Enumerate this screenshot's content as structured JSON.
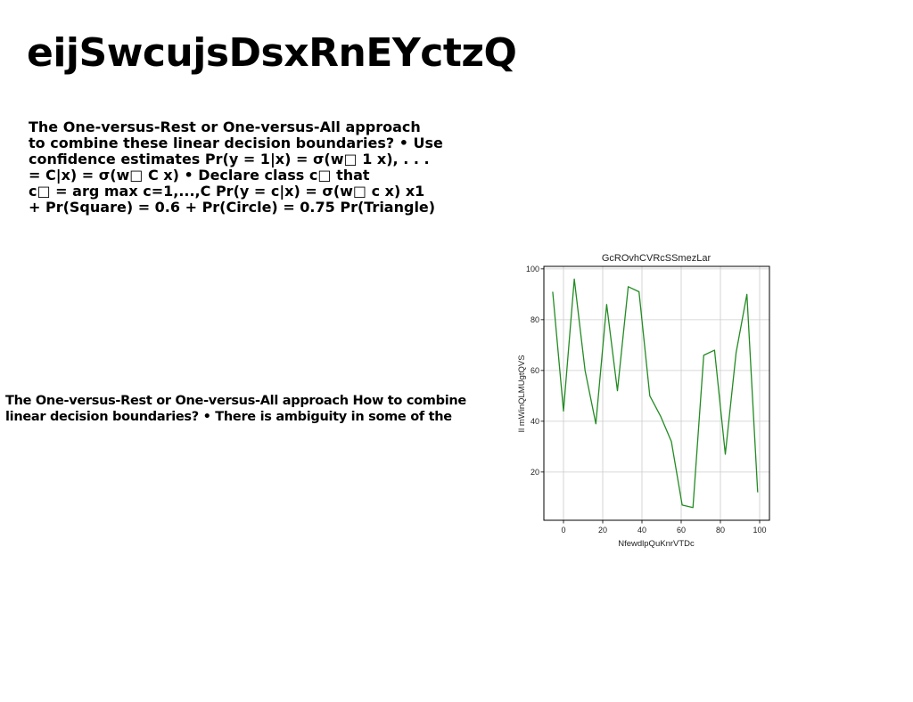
{
  "document": {
    "title": "eijSwcujsDsxRnEYctzQ",
    "paragraph_1_lines": [
      "The One-versus-Rest or One-versus-All approach",
      "to combine these linear decision boundaries? • Use",
      "confidence estimates Pr(y = 1|x) = σ(w□ 1 x), . . .",
      "= C|x) = σ(w□ C x) • Declare class c□ that",
      "c□ = arg max c=1,...,C Pr(y = c|x) = σ(w□ c x) x1",
      "+ Pr(Square) = 0.6 + Pr(Circle) = 0.75 Pr(Triangle)"
    ],
    "paragraph_2_lines": [
      "The One-versus-Rest or One-versus-All approach How to combine",
      "linear decision boundaries? • There is ambiguity in some of the"
    ]
  },
  "chart_data": {
    "type": "line",
    "title": "GcROvhCVRcSSmezLar",
    "xlabel": "NfewdlpQuKnrVTDc",
    "ylabel": "Il mWinQLMUgtQVS",
    "xlim": [
      -10,
      105
    ],
    "ylim": [
      1,
      101
    ],
    "x_ticks": [
      0,
      20,
      40,
      60,
      80,
      100
    ],
    "y_ticks": [
      20,
      40,
      60,
      80,
      100
    ],
    "grid": true,
    "series": [
      {
        "color": "#228B22",
        "x": [
          -5.5,
          0,
          5.5,
          11,
          16.5,
          22,
          27.5,
          33,
          38.5,
          44,
          49.5,
          55,
          60.5,
          66,
          71.5,
          77,
          82.5,
          88,
          93.5,
          99
        ],
        "y": [
          91,
          44,
          96,
          60,
          39,
          86,
          52,
          93,
          91,
          50,
          42,
          32,
          7,
          6,
          66,
          68,
          27,
          67,
          90,
          12
        ]
      }
    ]
  }
}
